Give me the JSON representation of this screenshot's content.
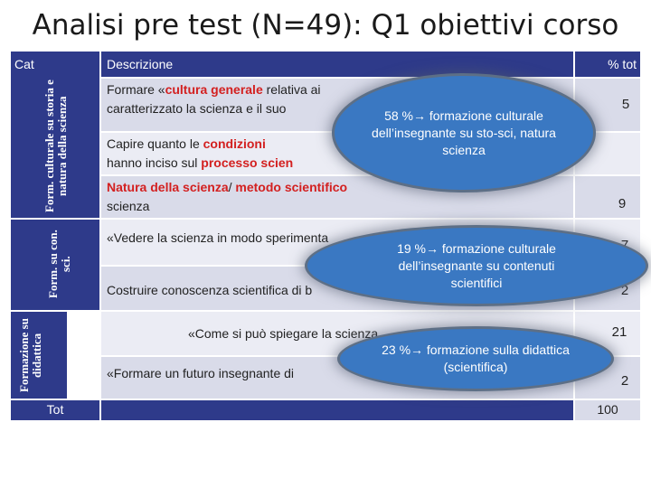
{
  "title": "Analisi pre test (N=49): Q1 obiettivi corso",
  "header": {
    "cat": "Cat",
    "descrizione": "Descrizione",
    "pct": "% tot"
  },
  "categories": {
    "form_culturale": "Form. culturale su storia e natura della scienza",
    "form_contenuti": "Form. su con. sci.",
    "formazione_didattica": "Formazione su didattica"
  },
  "rows": {
    "r1_a": "Formare «",
    "r1_b": "cultura generale",
    "r1_c": " relativa ai",
    "r1_d": "caratterizzato la scienza e il suo",
    "r1_pct": "5",
    "r2_a": "Capire quanto le ",
    "r2_b": "condizioni",
    "r2_c": "hanno inciso sul ",
    "r2_d": "processo scien",
    "r3_a": "Natura della scienza",
    "r3_b": "/ ",
    "r3_c": "metodo scientifico",
    "r3_d": "scienza",
    "r3_pct": "9",
    "r4_a": "«Vedere la scienza in modo sperimenta",
    "r4_pct": "7",
    "r5_a": "Costruire conoscenza scientifica di b",
    "r5_pct": "2",
    "r6_a": "«Come si può spiegare la scienza",
    "r6_pct": "21",
    "r7_a": "«Formare un futuro insegnante di",
    "r7_pct": "2"
  },
  "total": {
    "label": "Tot",
    "pct": "100"
  },
  "bubbles": {
    "b1_line1": "58 %→ formazione culturale",
    "b1_line2": "dell’insegnante su sto-sci, natura",
    "b1_line3": "scienza",
    "b2_line1": "19 %→ formazione culturale",
    "b2_line2": "dell’insegnante su contenuti",
    "b2_line3": "scientifici",
    "b3_line1": "23 %→ formazione sulla didattica",
    "b3_line2": "(scientifica)"
  },
  "colors": {
    "header": "#2e3a8a",
    "row_light": "#d9dbe9",
    "row_lighter": "#ebecf4",
    "highlight": "#d32020",
    "bubble": "#3a78c2"
  }
}
